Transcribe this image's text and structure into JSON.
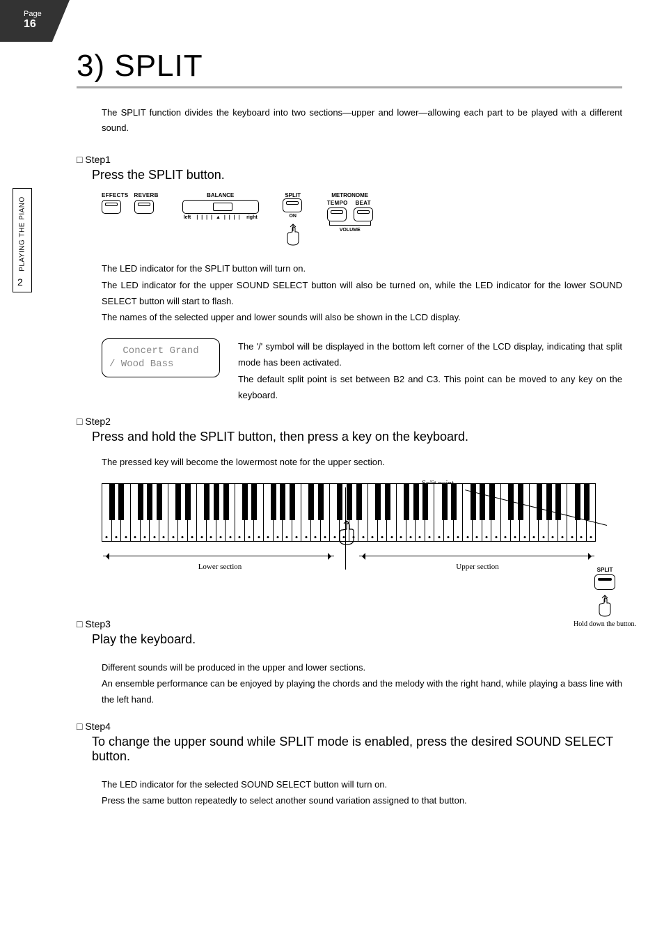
{
  "page": {
    "label": "Page",
    "number": "16"
  },
  "side": {
    "section_number": "2",
    "section_label": "PLAYING THE PIANO"
  },
  "title": "3) SPLIT",
  "intro": "The SPLIT function divides the keyboard into two sections—upper and lower—allowing each part to be played with a different sound.",
  "panel": {
    "effects": "EFFECTS",
    "reverb": "REVERB",
    "balance": "BALANCE",
    "left": "left",
    "right": "right",
    "split": "SPLIT",
    "on": "ON",
    "metronome": "METRONOME",
    "tempo": "TEMPO",
    "beat": "BEAT",
    "volume": "VOLUME"
  },
  "step1": {
    "head": "Step1",
    "title": "Press the SPLIT button.",
    "p1": "The LED indicator for the SPLIT button will turn on.",
    "p2": "The LED indicator for the upper SOUND SELECT button will also be turned on, while the LED indicator for the lower SOUND SELECT button will start to flash.",
    "p3": "The names of the selected upper and lower sounds will also be shown in the LCD display.",
    "lcd_line1": "Concert Grand",
    "lcd_line2": "/  Wood Bass",
    "side1": "The '/' symbol will be displayed in the bottom left corner of the LCD display, indicating that split mode has been activated.",
    "side2": "The default split point is set between B2 and C3. This point can be moved to any key on the keyboard."
  },
  "step2": {
    "head": "Step2",
    "title": "Press and hold the SPLIT button, then press a key on the keyboard.",
    "p1": "The pressed key will become the lowermost note for the upper section.",
    "split_point": "Split point",
    "lower": "Lower section",
    "upper": "Upper section",
    "hold_label": "SPLIT",
    "hold_caption": "Hold down the button."
  },
  "step3": {
    "head": "Step3",
    "title": "Play the keyboard.",
    "p1": "Different sounds will be produced in the upper and lower sections.",
    "p2": "An ensemble performance can be enjoyed by playing the chords and the melody with the right hand, while playing a bass line with the left hand."
  },
  "step4": {
    "head": "Step4",
    "title": "To change the upper sound while SPLIT mode is enabled, press the desired SOUND SELECT button.",
    "p1": "The LED indicator for the selected SOUND SELECT button will turn on.",
    "p2": "Press the same button repeatedly to select another sound variation assigned to that button."
  },
  "keyboard": {
    "white_count": 52,
    "black_pattern": [
      1,
      1,
      0,
      1,
      1,
      1,
      0
    ]
  }
}
